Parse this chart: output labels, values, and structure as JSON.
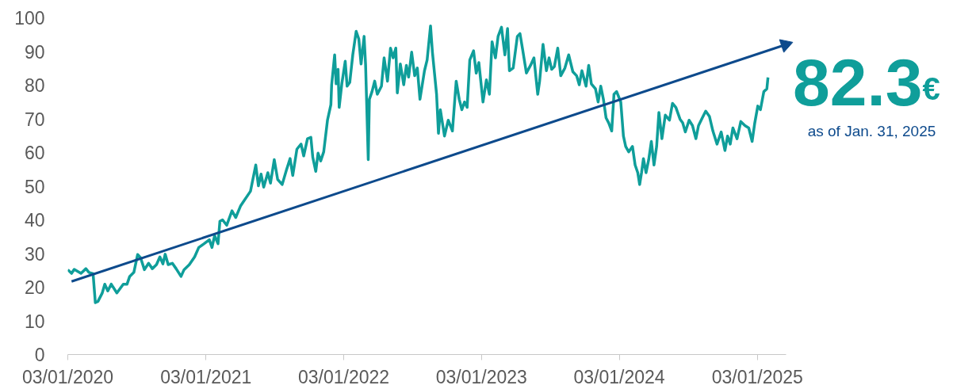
{
  "chart_data": {
    "type": "line",
    "x": [
      "2020-01-03",
      "2020-01-13",
      "2020-01-20",
      "2020-02-07",
      "2020-02-20",
      "2020-02-28",
      "2020-03-10",
      "2020-03-16",
      "2020-03-23",
      "2020-04-03",
      "2020-04-10",
      "2020-04-18",
      "2020-04-27",
      "2020-05-12",
      "2020-05-29",
      "2020-06-08",
      "2020-06-15",
      "2020-06-26",
      "2020-07-06",
      "2020-07-14",
      "2020-07-24",
      "2020-08-04",
      "2020-08-14",
      "2020-08-25",
      "2020-09-03",
      "2020-09-11",
      "2020-09-17",
      "2020-09-25",
      "2020-10-06",
      "2020-10-16",
      "2020-10-29",
      "2020-11-06",
      "2020-11-20",
      "2020-12-04",
      "2020-12-15",
      "2020-12-29",
      "2021-01-12",
      "2021-01-19",
      "2021-01-26",
      "2021-02-04",
      "2021-02-09",
      "2021-02-16",
      "2021-02-27",
      "2021-03-13",
      "2021-03-23",
      "2021-04-05",
      "2021-05-01",
      "2021-05-15",
      "2021-05-22",
      "2021-05-29",
      "2021-06-05",
      "2021-06-16",
      "2021-06-23",
      "2021-07-03",
      "2021-07-12",
      "2021-07-24",
      "2021-08-04",
      "2021-08-14",
      "2021-08-21",
      "2021-09-01",
      "2021-09-12",
      "2021-09-19",
      "2021-09-29",
      "2021-10-08",
      "2021-10-13",
      "2021-10-21",
      "2021-10-27",
      "2021-11-03",
      "2021-11-11",
      "2021-11-21",
      "2021-11-30",
      "2021-12-02",
      "2021-12-10",
      "2021-12-14",
      "2021-12-19",
      "2021-12-22",
      "2021-12-29",
      "2022-01-07",
      "2022-01-12",
      "2022-01-19",
      "2022-01-27",
      "2022-02-05",
      "2022-02-12",
      "2022-02-18",
      "2022-02-26",
      "2022-03-02",
      "2022-03-09",
      "2022-03-12",
      "2022-03-19",
      "2022-03-26",
      "2022-04-02",
      "2022-04-13",
      "2022-04-20",
      "2022-04-29",
      "2022-05-07",
      "2022-05-14",
      "2022-05-21",
      "2022-05-25",
      "2022-06-02",
      "2022-06-11",
      "2022-06-18",
      "2022-06-24",
      "2022-07-02",
      "2022-07-10",
      "2022-07-17",
      "2022-07-24",
      "2022-08-05",
      "2022-08-12",
      "2022-08-21",
      "2022-08-26",
      "2022-09-06",
      "2022-09-11",
      "2022-09-16",
      "2022-09-27",
      "2022-10-07",
      "2022-10-18",
      "2022-10-28",
      "2022-11-05",
      "2022-11-12",
      "2022-11-19",
      "2022-11-26",
      "2022-12-03",
      "2022-12-13",
      "2022-12-20",
      "2022-12-27",
      "2023-01-07",
      "2023-01-16",
      "2023-01-24",
      "2023-01-31",
      "2023-02-09",
      "2023-02-16",
      "2023-02-25",
      "2023-03-06",
      "2023-03-13",
      "2023-03-18",
      "2023-03-28",
      "2023-04-08",
      "2023-04-15",
      "2023-04-22",
      "2023-05-02",
      "2023-05-13",
      "2023-05-22",
      "2023-06-01",
      "2023-06-06",
      "2023-06-15",
      "2023-06-24",
      "2023-07-01",
      "2023-07-08",
      "2023-07-15",
      "2023-07-24",
      "2023-08-01",
      "2023-08-12",
      "2023-08-22",
      "2023-09-02",
      "2023-09-12",
      "2023-09-19",
      "2023-09-26",
      "2023-10-07",
      "2023-10-14",
      "2023-10-21",
      "2023-11-01",
      "2023-11-08",
      "2023-11-15",
      "2023-11-22",
      "2023-11-29",
      "2023-12-06",
      "2023-12-14",
      "2023-12-20",
      "2023-12-27",
      "2024-01-07",
      "2024-01-14",
      "2024-01-20",
      "2024-01-28",
      "2024-02-07",
      "2024-02-14",
      "2024-02-21",
      "2024-02-26",
      "2024-03-02",
      "2024-03-07",
      "2024-03-14",
      "2024-03-21",
      "2024-03-28",
      "2024-04-04",
      "2024-04-11",
      "2024-04-17",
      "2024-04-25",
      "2024-05-04",
      "2024-05-15",
      "2024-05-23",
      "2024-06-01",
      "2024-06-12",
      "2024-06-19",
      "2024-06-26",
      "2024-07-06",
      "2024-07-15",
      "2024-07-24",
      "2024-07-31",
      "2024-08-10",
      "2024-08-19",
      "2024-08-29",
      "2024-09-07",
      "2024-09-18",
      "2024-09-29",
      "2024-10-09",
      "2024-10-16",
      "2024-10-23",
      "2024-10-30",
      "2024-11-10",
      "2024-11-20",
      "2024-12-01",
      "2024-12-11",
      "2024-12-20",
      "2024-12-27",
      "2025-01-04",
      "2025-01-11",
      "2025-01-20",
      "2025-01-28",
      "2025-01-31"
    ],
    "series": [
      {
        "color": "#0f9e9a",
        "values": [
          25.2,
          24.1,
          25.3,
          24.1,
          25.5,
          24.4,
          24.0,
          15.4,
          15.8,
          18.2,
          20.9,
          18.9,
          20.9,
          18.3,
          20.9,
          20.9,
          23.2,
          24.4,
          29.7,
          28.7,
          25.2,
          27.1,
          25.5,
          26.7,
          29.0,
          26.9,
          29.8,
          26.7,
          27.1,
          25.5,
          23.2,
          25.2,
          26.7,
          29.0,
          31.8,
          32.9,
          34.1,
          31.8,
          35.3,
          32.9,
          39.6,
          40.0,
          38.4,
          42.7,
          40.7,
          44.2,
          48.5,
          56.3,
          50.1,
          53.6,
          49.7,
          54.0,
          50.9,
          57.9,
          52.0,
          50.5,
          54.7,
          58.2,
          53.2,
          61.0,
          62.5,
          59.0,
          64.1,
          64.5,
          58.6,
          54.4,
          59.8,
          57.5,
          60.2,
          69.6,
          74.2,
          80.1,
          89.0,
          80.4,
          84.7,
          73.4,
          80.4,
          87.1,
          79.7,
          80.8,
          89.0,
          96.0,
          93.7,
          86.3,
          94.5,
          85.9,
          57.9,
          75.8,
          78.1,
          81.2,
          77.3,
          79.7,
          88.1,
          81.2,
          91.0,
          88.1,
          91.0,
          77.7,
          86.3,
          80.1,
          85.9,
          82.4,
          89.8,
          82.8,
          85.1,
          75.8,
          84.3,
          87.5,
          97.6,
          89.8,
          77.3,
          65.7,
          72.7,
          64.9,
          69.6,
          66.4,
          81.2,
          75.8,
          72.7,
          75.0,
          73.4,
          87.5,
          90.2,
          83.6,
          86.7,
          75.0,
          81.6,
          77.3,
          92.9,
          88.1,
          94.5,
          97.2,
          89.0,
          96.8,
          84.3,
          85.1,
          94.5,
          95.3,
          90.6,
          83.6,
          85.9,
          88.1,
          77.3,
          81.2,
          92.1,
          84.3,
          88.1,
          84.7,
          85.5,
          91.0,
          82.8,
          85.1,
          89.0,
          84.0,
          82.8,
          80.1,
          84.3,
          79.7,
          85.9,
          80.4,
          78.9,
          75.0,
          79.7,
          75.8,
          70.3,
          68.8,
          66.4,
          77.3,
          78.1,
          75.0,
          64.9,
          61.8,
          60.2,
          61.8,
          56.3,
          54.0,
          50.5,
          54.0,
          58.2,
          54.0,
          57.9,
          63.3,
          56.3,
          61.8,
          71.9,
          64.1,
          71.1,
          69.6,
          74.6,
          73.4,
          69.9,
          68.8,
          66.1,
          69.6,
          68.0,
          64.1,
          68.0,
          70.3,
          72.3,
          70.7,
          66.4,
          62.5,
          66.1,
          60.6,
          64.9,
          62.5,
          67.3,
          64.1,
          69.2,
          68.0,
          67.3,
          63.3,
          68.8,
          73.8,
          72.7,
          78.1,
          78.9,
          82.3
        ]
      },
      {
        "type": "line",
        "color": "#0d4a8c",
        "x": [
          "2020-01-13",
          "2025-03-18"
        ],
        "values": [
          21.7,
          92.0
        ]
      }
    ],
    "xlim": [
      "2020-01-03",
      "2025-03-20"
    ],
    "ylim": [
      0,
      100
    ],
    "xticks": [
      {
        "value": "2020-01-03",
        "label": "03/01/2020"
      },
      {
        "value": "2021-01-03",
        "label": "03/01/2021"
      },
      {
        "value": "2022-01-03",
        "label": "03/01/2022"
      },
      {
        "value": "2023-01-03",
        "label": "03/01/2023"
      },
      {
        "value": "2024-01-03",
        "label": "03/01/2024"
      },
      {
        "value": "2025-01-03",
        "label": "03/01/2025"
      }
    ],
    "yticks": [
      0,
      10,
      20,
      30,
      40,
      50,
      60,
      70,
      80,
      90,
      100
    ],
    "annotations": [
      "82.3",
      "€",
      "as of Jan. 31, 2025"
    ]
  }
}
